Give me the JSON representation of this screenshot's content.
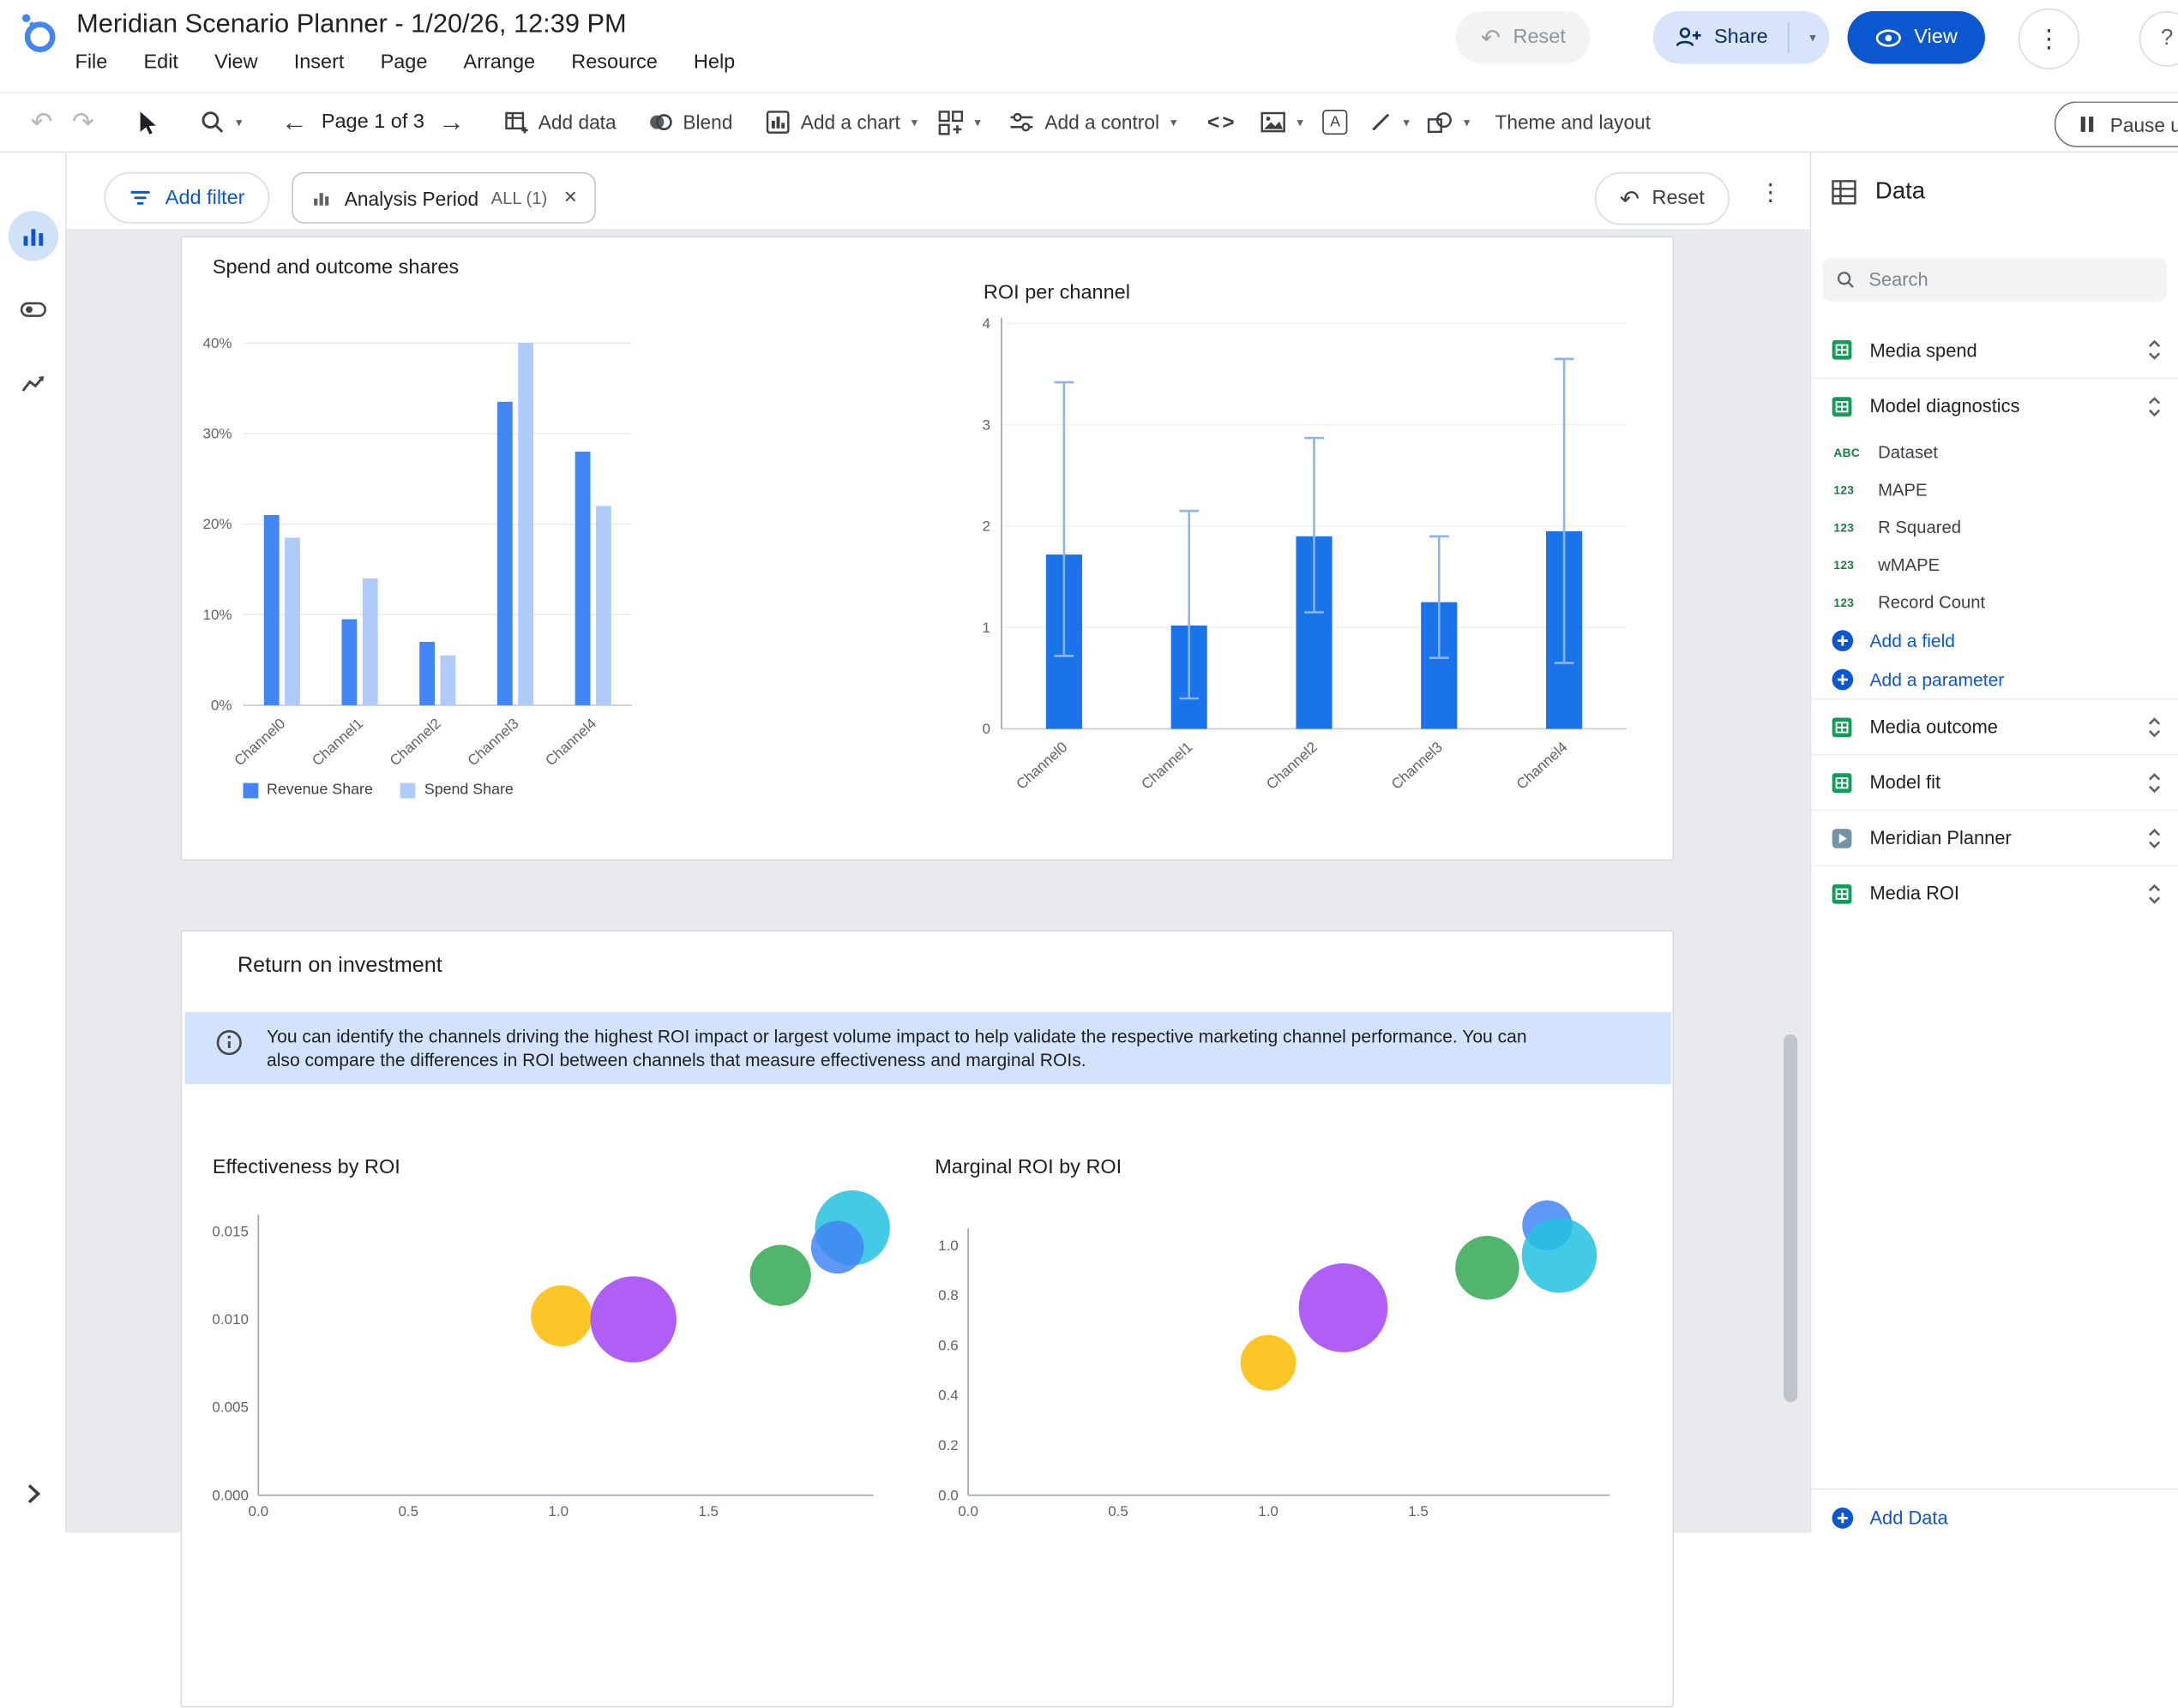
{
  "colors": {
    "accent_blue": "#0b57d0",
    "info_banner": "#d3e3fd",
    "canvas_bg": "#e8eaed"
  },
  "header": {
    "title": "Meridian Scenario Planner - 1/20/26, 12:39 PM",
    "menus": [
      "File",
      "Edit",
      "View",
      "Insert",
      "Page",
      "Arrange",
      "Resource",
      "Help"
    ],
    "reset_label": "Reset",
    "share_label": "Share",
    "view_label": "View",
    "help_label": "?"
  },
  "toolbar": {
    "page_label": "Page 1 of 3",
    "add_data_label": "Add data",
    "blend_label": "Blend",
    "add_chart_label": "Add a chart",
    "add_control_label": "Add a control",
    "embed_label": "<>",
    "theme_label": "Theme and layout",
    "pause_label": "Pause u"
  },
  "filter_bar": {
    "add_filter_label": "Add filter",
    "chip_label": "Analysis Period",
    "chip_value": "ALL (1)",
    "reset_label": "Reset"
  },
  "main": {
    "section_title": "Return on investment",
    "info_text": "You can identify the channels driving the highest ROI impact or largest volume impact to help validate the respective marketing channel performance. You can also compare the differences in ROI between channels that measure effectiveness and marginal ROIs."
  },
  "data_panel": {
    "title": "Data",
    "search_placeholder": "Search",
    "sources": [
      {
        "name": "Media spend",
        "icon": "sheets"
      },
      {
        "name": "Model diagnostics",
        "icon": "sheets",
        "expanded": true
      },
      {
        "name": "Media outcome",
        "icon": "sheets"
      },
      {
        "name": "Model fit",
        "icon": "sheets"
      },
      {
        "name": "Meridian Planner",
        "icon": "connector"
      },
      {
        "name": "Media ROI",
        "icon": "sheets"
      }
    ],
    "fields": [
      {
        "type": "ABC",
        "name": "Dataset"
      },
      {
        "type": "123",
        "name": "MAPE"
      },
      {
        "type": "123",
        "name": "R Squared"
      },
      {
        "type": "123",
        "name": "wMAPE"
      },
      {
        "type": "123",
        "name": "Record Count"
      }
    ],
    "add_field_label": "Add a field",
    "add_parameter_label": "Add a parameter",
    "add_data_label": "Add Data"
  },
  "chart_data": [
    {
      "type": "bar",
      "title": "Spend and outcome shares",
      "categories": [
        "Channel0",
        "Channel1",
        "Channel2",
        "Channel3",
        "Channel4"
      ],
      "series": [
        {
          "name": "Revenue Share",
          "color": "#4285f4",
          "values": [
            21,
            9.5,
            7,
            33.5,
            28
          ]
        },
        {
          "name": "Spend Share",
          "color": "#aecbfa",
          "values": [
            18.5,
            14,
            5.5,
            40,
            22
          ]
        }
      ],
      "ylim": [
        0,
        40
      ],
      "yticks": [
        0,
        10,
        20,
        30,
        40
      ],
      "ytick_labels": [
        "0%",
        "10%",
        "20%",
        "30%",
        "40%"
      ],
      "grid": true,
      "legend_position": "bottom"
    },
    {
      "type": "bar",
      "title": "ROI per channel",
      "categories": [
        "Channel0",
        "Channel1",
        "Channel2",
        "Channel3",
        "Channel4"
      ],
      "values": [
        1.72,
        1.02,
        1.9,
        1.25,
        1.95
      ],
      "error_low": [
        0.72,
        0.3,
        1.15,
        0.7,
        0.65
      ],
      "error_high": [
        3.42,
        2.15,
        2.87,
        1.9,
        3.65
      ],
      "ylim": [
        0,
        4
      ],
      "yticks": [
        0,
        1,
        2,
        3,
        4
      ],
      "ytick_labels": [
        "0",
        "1",
        "2",
        "3",
        "4"
      ],
      "bar_color": "#1a73e8",
      "error_color": "#8ab4f8"
    },
    {
      "type": "scatter",
      "title": "Effectiveness by ROI",
      "xticks": [
        0,
        0.5,
        1,
        1.5
      ],
      "xtick_labels": [
        "0.0",
        "0.5",
        "1.0",
        "1.5"
      ],
      "yticks": [
        0,
        0.005,
        0.01,
        0.015
      ],
      "ytick_labels": [
        "0.000",
        "0.005",
        "0.010",
        "0.015"
      ],
      "xlim": [
        0,
        2.1
      ],
      "ylim": [
        0,
        0.017
      ],
      "points": [
        {
          "x": 1.01,
          "y": 0.0102,
          "r": 22,
          "color": "#fbbc04"
        },
        {
          "x": 1.25,
          "y": 0.01,
          "r": 31,
          "color": "#a142f4"
        },
        {
          "x": 1.74,
          "y": 0.0125,
          "r": 22,
          "color": "#34a853"
        },
        {
          "x": 1.98,
          "y": 0.0152,
          "r": 27,
          "color": "#24c1e0"
        },
        {
          "x": 1.93,
          "y": 0.0141,
          "r": 19,
          "color": "#4285f4"
        }
      ]
    },
    {
      "type": "scatter",
      "title": "Marginal ROI by ROI",
      "xticks": [
        0,
        0.5,
        1,
        1.5
      ],
      "xtick_labels": [
        "0.0",
        "0.5",
        "1.0",
        "1.5"
      ],
      "yticks": [
        0,
        0.2,
        0.4,
        0.6,
        0.8,
        1.0
      ],
      "ytick_labels": [
        "0.0",
        "0.2",
        "0.4",
        "0.6",
        "0.8",
        "1.0"
      ],
      "xlim": [
        0,
        2.1
      ],
      "ylim": [
        0,
        1.15
      ],
      "points": [
        {
          "x": 1.0,
          "y": 0.53,
          "r": 20,
          "color": "#fbbc04"
        },
        {
          "x": 1.25,
          "y": 0.75,
          "r": 32,
          "color": "#a142f4"
        },
        {
          "x": 1.73,
          "y": 0.91,
          "r": 23,
          "color": "#34a853"
        },
        {
          "x": 1.93,
          "y": 1.08,
          "r": 18,
          "color": "#4285f4"
        },
        {
          "x": 1.97,
          "y": 0.96,
          "r": 27,
          "color": "#24c1e0"
        }
      ]
    }
  ]
}
